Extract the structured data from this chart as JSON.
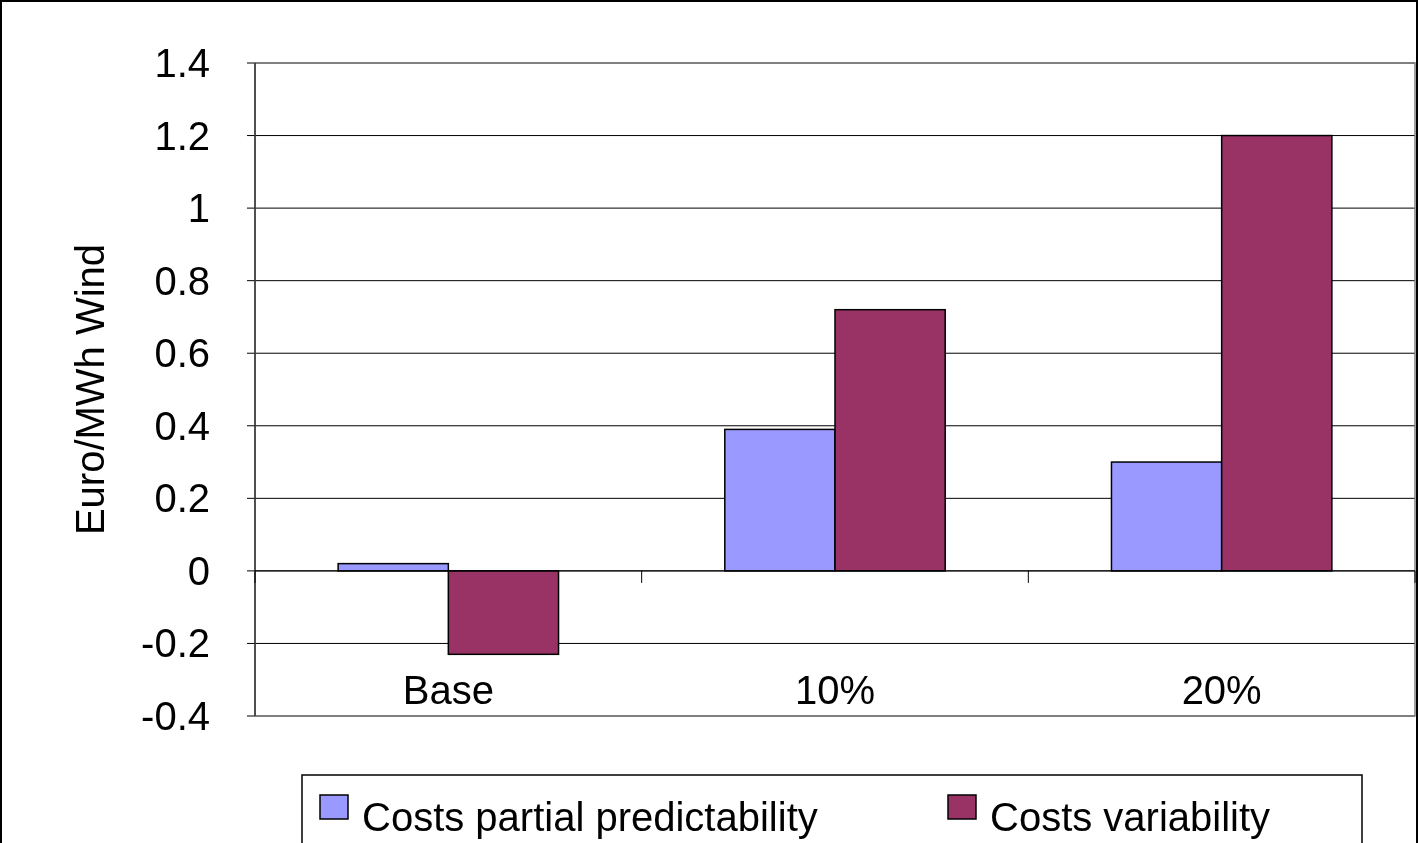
{
  "chart_data": {
    "type": "bar",
    "ylabel": "Euro/MWh Wind",
    "categories": [
      "Base",
      "10%",
      "20%"
    ],
    "series": [
      {
        "name": "Costs partial predictability",
        "color": "#9999ff",
        "values": [
          0.02,
          0.39,
          0.3
        ]
      },
      {
        "name": "Costs variability",
        "color": "#993366",
        "values": [
          -0.23,
          0.72,
          1.2
        ]
      }
    ],
    "ylim": [
      -0.4,
      1.4
    ],
    "yticks": [
      -0.4,
      -0.2,
      0,
      0.2,
      0.4,
      0.6,
      0.8,
      1,
      1.2,
      1.4
    ],
    "grid": "y",
    "legend": "bottom"
  }
}
